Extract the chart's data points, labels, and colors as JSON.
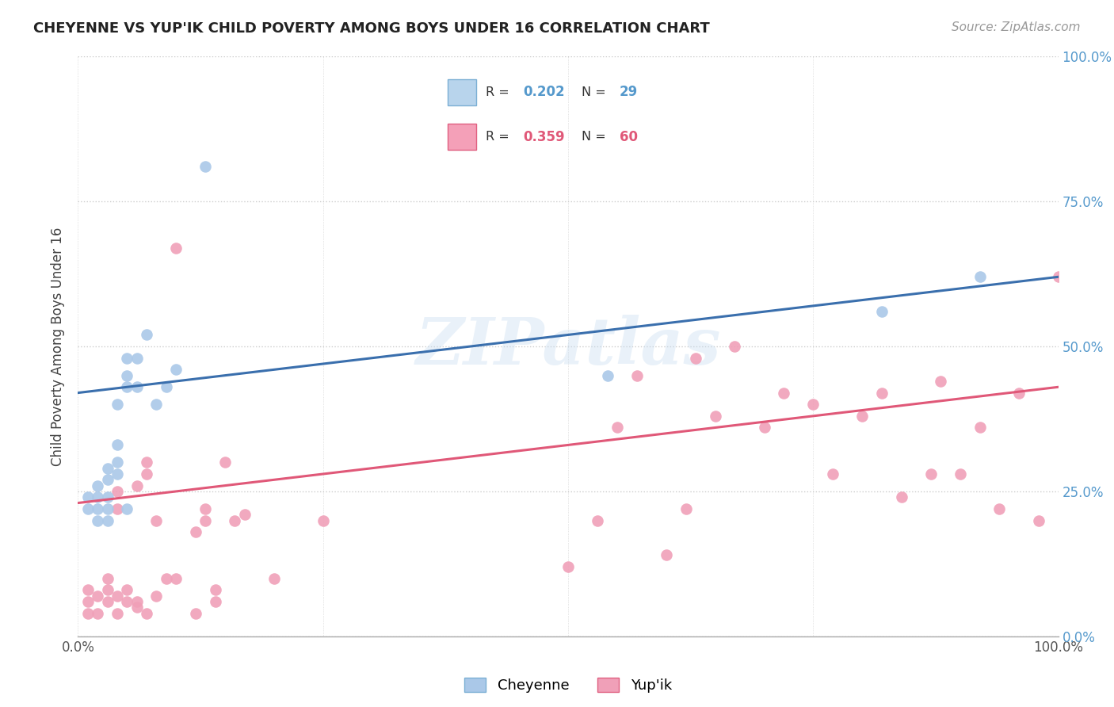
{
  "title": "CHEYENNE VS YUP'IK CHILD POVERTY AMONG BOYS UNDER 16 CORRELATION CHART",
  "source": "Source: ZipAtlas.com",
  "ylabel": "Child Poverty Among Boys Under 16",
  "xlim": [
    0,
    1
  ],
  "ylim": [
    0,
    1
  ],
  "background_color": "#ffffff",
  "cheyenne_color": "#aac8e8",
  "yupik_color": "#f0a0b8",
  "cheyenne_line_color": "#3a6fad",
  "yupik_line_color": "#e05878",
  "cheyenne_R": 0.202,
  "cheyenne_N": 29,
  "yupik_R": 0.359,
  "yupik_N": 60,
  "watermark": "ZIPatlas",
  "cheyenne_x": [
    0.01,
    0.01,
    0.02,
    0.02,
    0.02,
    0.02,
    0.03,
    0.03,
    0.03,
    0.03,
    0.03,
    0.04,
    0.04,
    0.04,
    0.04,
    0.05,
    0.05,
    0.05,
    0.05,
    0.06,
    0.06,
    0.07,
    0.08,
    0.09,
    0.1,
    0.13,
    0.54,
    0.82,
    0.92
  ],
  "cheyenne_y": [
    0.22,
    0.24,
    0.2,
    0.22,
    0.24,
    0.26,
    0.2,
    0.22,
    0.24,
    0.27,
    0.29,
    0.28,
    0.3,
    0.33,
    0.4,
    0.45,
    0.48,
    0.43,
    0.22,
    0.43,
    0.48,
    0.52,
    0.4,
    0.43,
    0.46,
    0.81,
    0.45,
    0.56,
    0.62
  ],
  "yupik_x": [
    0.01,
    0.01,
    0.01,
    0.02,
    0.02,
    0.03,
    0.03,
    0.03,
    0.04,
    0.04,
    0.04,
    0.04,
    0.05,
    0.05,
    0.06,
    0.06,
    0.06,
    0.07,
    0.07,
    0.07,
    0.08,
    0.08,
    0.09,
    0.1,
    0.1,
    0.12,
    0.12,
    0.13,
    0.13,
    0.14,
    0.14,
    0.15,
    0.16,
    0.17,
    0.2,
    0.25,
    0.5,
    0.53,
    0.55,
    0.57,
    0.6,
    0.62,
    0.63,
    0.65,
    0.67,
    0.7,
    0.72,
    0.75,
    0.77,
    0.8,
    0.82,
    0.84,
    0.87,
    0.88,
    0.9,
    0.92,
    0.94,
    0.96,
    0.98,
    1.0
  ],
  "yupik_y": [
    0.04,
    0.06,
    0.08,
    0.04,
    0.07,
    0.06,
    0.08,
    0.1,
    0.04,
    0.07,
    0.22,
    0.25,
    0.06,
    0.08,
    0.05,
    0.06,
    0.26,
    0.04,
    0.28,
    0.3,
    0.2,
    0.07,
    0.1,
    0.67,
    0.1,
    0.04,
    0.18,
    0.2,
    0.22,
    0.06,
    0.08,
    0.3,
    0.2,
    0.21,
    0.1,
    0.2,
    0.12,
    0.2,
    0.36,
    0.45,
    0.14,
    0.22,
    0.48,
    0.38,
    0.5,
    0.36,
    0.42,
    0.4,
    0.28,
    0.38,
    0.42,
    0.24,
    0.28,
    0.44,
    0.28,
    0.36,
    0.22,
    0.42,
    0.2,
    0.62
  ],
  "blue_line_x0": 0.0,
  "blue_line_y0": 0.42,
  "blue_line_x1": 1.0,
  "blue_line_y1": 0.62,
  "pink_line_x0": 0.0,
  "pink_line_y0": 0.23,
  "pink_line_x1": 1.0,
  "pink_line_y1": 0.43
}
